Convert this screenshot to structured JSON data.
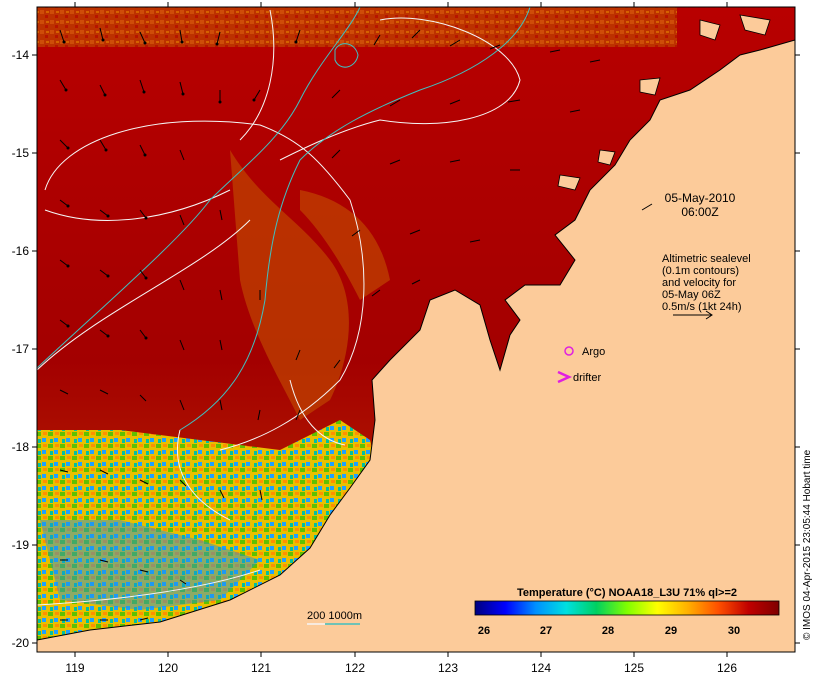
{
  "map": {
    "date": "05-May-2010",
    "time": "06:00Z",
    "x_ticks": [
      "119",
      "120",
      "121",
      "122",
      "123",
      "124",
      "125",
      "126"
    ],
    "y_ticks": [
      "-14",
      "-15",
      "-16",
      "-17",
      "-18",
      "-19",
      "-20"
    ],
    "land_color": "#fccb9a",
    "warm_color": "#a90000"
  },
  "legend": {
    "velocity_title_line1": "Altimetric sealevel",
    "velocity_title_line2": "(0.1m contours)",
    "velocity_title_line3": "and velocity for",
    "velocity_title_line4": "05-May 06Z",
    "velocity_scale": "0.5m/s (1kt 24h)",
    "argo_label": "Argo",
    "drifter_label": "drifter",
    "bathy_label": "200  1000m"
  },
  "colorbar": {
    "title": "Temperature (°C) NOAA18_L3U 71% ql>=2",
    "ticks": [
      "26",
      "27",
      "28",
      "29",
      "30"
    ],
    "stops": [
      "#00007f",
      "#0000ff",
      "#00a0ff",
      "#00ffc8",
      "#00d000",
      "#a0ff00",
      "#ffff00",
      "#ffb000",
      "#ff6000",
      "#d00000",
      "#a90000",
      "#7f0000"
    ]
  },
  "credit": "© IMOS 04-Apr-2015 23:05:44 Hobart time"
}
